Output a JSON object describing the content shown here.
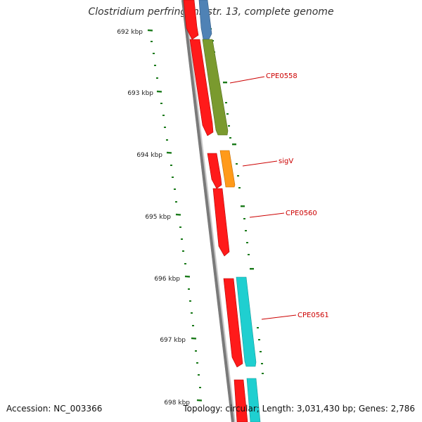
{
  "title": "Clostridium perfringens str. 13, complete genome",
  "footer": {
    "accession": "Accession: NC_003366",
    "summary": "Topology: circular; Length: 3,031,430 bp; Genes: 2,786"
  },
  "colors": {
    "background": "#ffffff",
    "backbone": "#7a7a7a",
    "tick": "#1a7a1a",
    "ruler_label": "#222222",
    "gene_label": "#cc0000",
    "cds_red": "#ff1a1a",
    "blue": "#4f82b5",
    "green": "#7a9a2e",
    "orange": "#ff9a1a",
    "cyan": "#1fcfd0"
  },
  "ruler": {
    "labels": [
      "692 kbp",
      "693 kbp",
      "694 kbp",
      "695 kbp",
      "696 kbp",
      "697 kbp",
      "698 kbp"
    ]
  },
  "genes": {
    "labels": [
      "CPE0558",
      "sigV",
      "CPE0560",
      "CPE0561"
    ]
  },
  "features": [
    {
      "track": "red",
      "color": "cds_red"
    },
    {
      "track": "red",
      "color": "cds_red"
    },
    {
      "track": "red",
      "color": "cds_red"
    },
    {
      "track": "red",
      "color": "cds_red"
    },
    {
      "track": "red",
      "color": "cds_red"
    },
    {
      "track": "red",
      "color": "cds_red"
    },
    {
      "track": "outer",
      "color": "blue"
    },
    {
      "track": "outer",
      "color": "green"
    },
    {
      "track": "outer",
      "color": "orange"
    },
    {
      "track": "outer",
      "color": "cyan"
    },
    {
      "track": "outer",
      "color": "cyan"
    }
  ]
}
